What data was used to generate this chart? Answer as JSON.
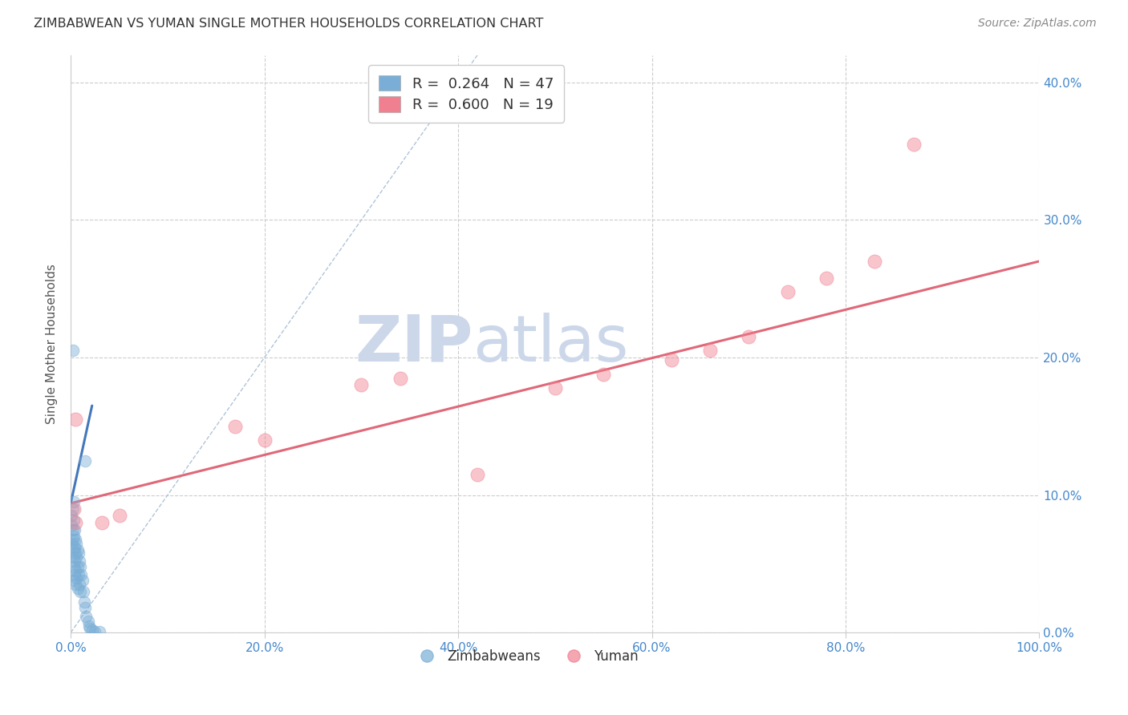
{
  "title": "ZIMBABWEAN VS YUMAN SINGLE MOTHER HOUSEHOLDS CORRELATION CHART",
  "source": "Source: ZipAtlas.com",
  "ylabel": "Single Mother Households",
  "xlabel_ticks": [
    "0.0%",
    "20.0%",
    "40.0%",
    "60.0%",
    "80.0%",
    "100.0%"
  ],
  "ylabel_ticks": [
    "0.0%",
    "10.0%",
    "20.0%",
    "30.0%",
    "40.0%"
  ],
  "xlim": [
    0.0,
    1.0
  ],
  "ylim": [
    0.0,
    0.42
  ],
  "blue_scatter_x": [
    0.001,
    0.001,
    0.001,
    0.002,
    0.002,
    0.002,
    0.002,
    0.003,
    0.003,
    0.003,
    0.003,
    0.003,
    0.004,
    0.004,
    0.004,
    0.004,
    0.005,
    0.005,
    0.005,
    0.005,
    0.006,
    0.006,
    0.006,
    0.007,
    0.007,
    0.007,
    0.008,
    0.008,
    0.009,
    0.009,
    0.01,
    0.01,
    0.011,
    0.012,
    0.013,
    0.014,
    0.015,
    0.016,
    0.018,
    0.019,
    0.02,
    0.022,
    0.025,
    0.03,
    0.002,
    0.015,
    0.003
  ],
  "blue_scatter_y": [
    0.085,
    0.078,
    0.065,
    0.09,
    0.075,
    0.068,
    0.055,
    0.082,
    0.07,
    0.06,
    0.048,
    0.038,
    0.075,
    0.062,
    0.052,
    0.042,
    0.068,
    0.058,
    0.045,
    0.035,
    0.065,
    0.055,
    0.04,
    0.06,
    0.048,
    0.032,
    0.058,
    0.042,
    0.052,
    0.035,
    0.048,
    0.03,
    0.042,
    0.038,
    0.03,
    0.022,
    0.018,
    0.012,
    0.008,
    0.005,
    0.003,
    0.002,
    0.001,
    0.001,
    0.205,
    0.125,
    0.095
  ],
  "pink_scatter_x": [
    0.003,
    0.005,
    0.032,
    0.05,
    0.005,
    0.17,
    0.2,
    0.3,
    0.34,
    0.42,
    0.5,
    0.55,
    0.62,
    0.66,
    0.7,
    0.74,
    0.78,
    0.83,
    0.87
  ],
  "pink_scatter_y": [
    0.09,
    0.155,
    0.08,
    0.085,
    0.08,
    0.15,
    0.14,
    0.18,
    0.185,
    0.115,
    0.178,
    0.188,
    0.198,
    0.205,
    0.215,
    0.248,
    0.258,
    0.27,
    0.355
  ],
  "blue_line_x": [
    0.0,
    0.022
  ],
  "blue_line_y": [
    0.094,
    0.165
  ],
  "pink_line_x": [
    0.0,
    1.0
  ],
  "pink_line_y": [
    0.094,
    0.27
  ],
  "dashed_line_x": [
    0.0,
    0.42
  ],
  "dashed_line_y": [
    0.0,
    0.42
  ],
  "blue_color": "#7aaed6",
  "pink_color": "#f08090",
  "blue_line_color": "#4477bb",
  "pink_line_color": "#e06878",
  "dashed_line_color": "#b0c4d8",
  "watermark_zip": "ZIP",
  "watermark_atlas": "atlas",
  "watermark_color": "#ccd8ea",
  "title_color": "#333333",
  "source_color": "#888888",
  "tick_color_x": "#4488cc",
  "tick_color_y": "#4488cc",
  "grid_color": "#cccccc",
  "background_color": "#ffffff",
  "legend_label_blue": "R =  0.264   N = 47",
  "legend_label_pink": "R =  0.600   N = 19"
}
